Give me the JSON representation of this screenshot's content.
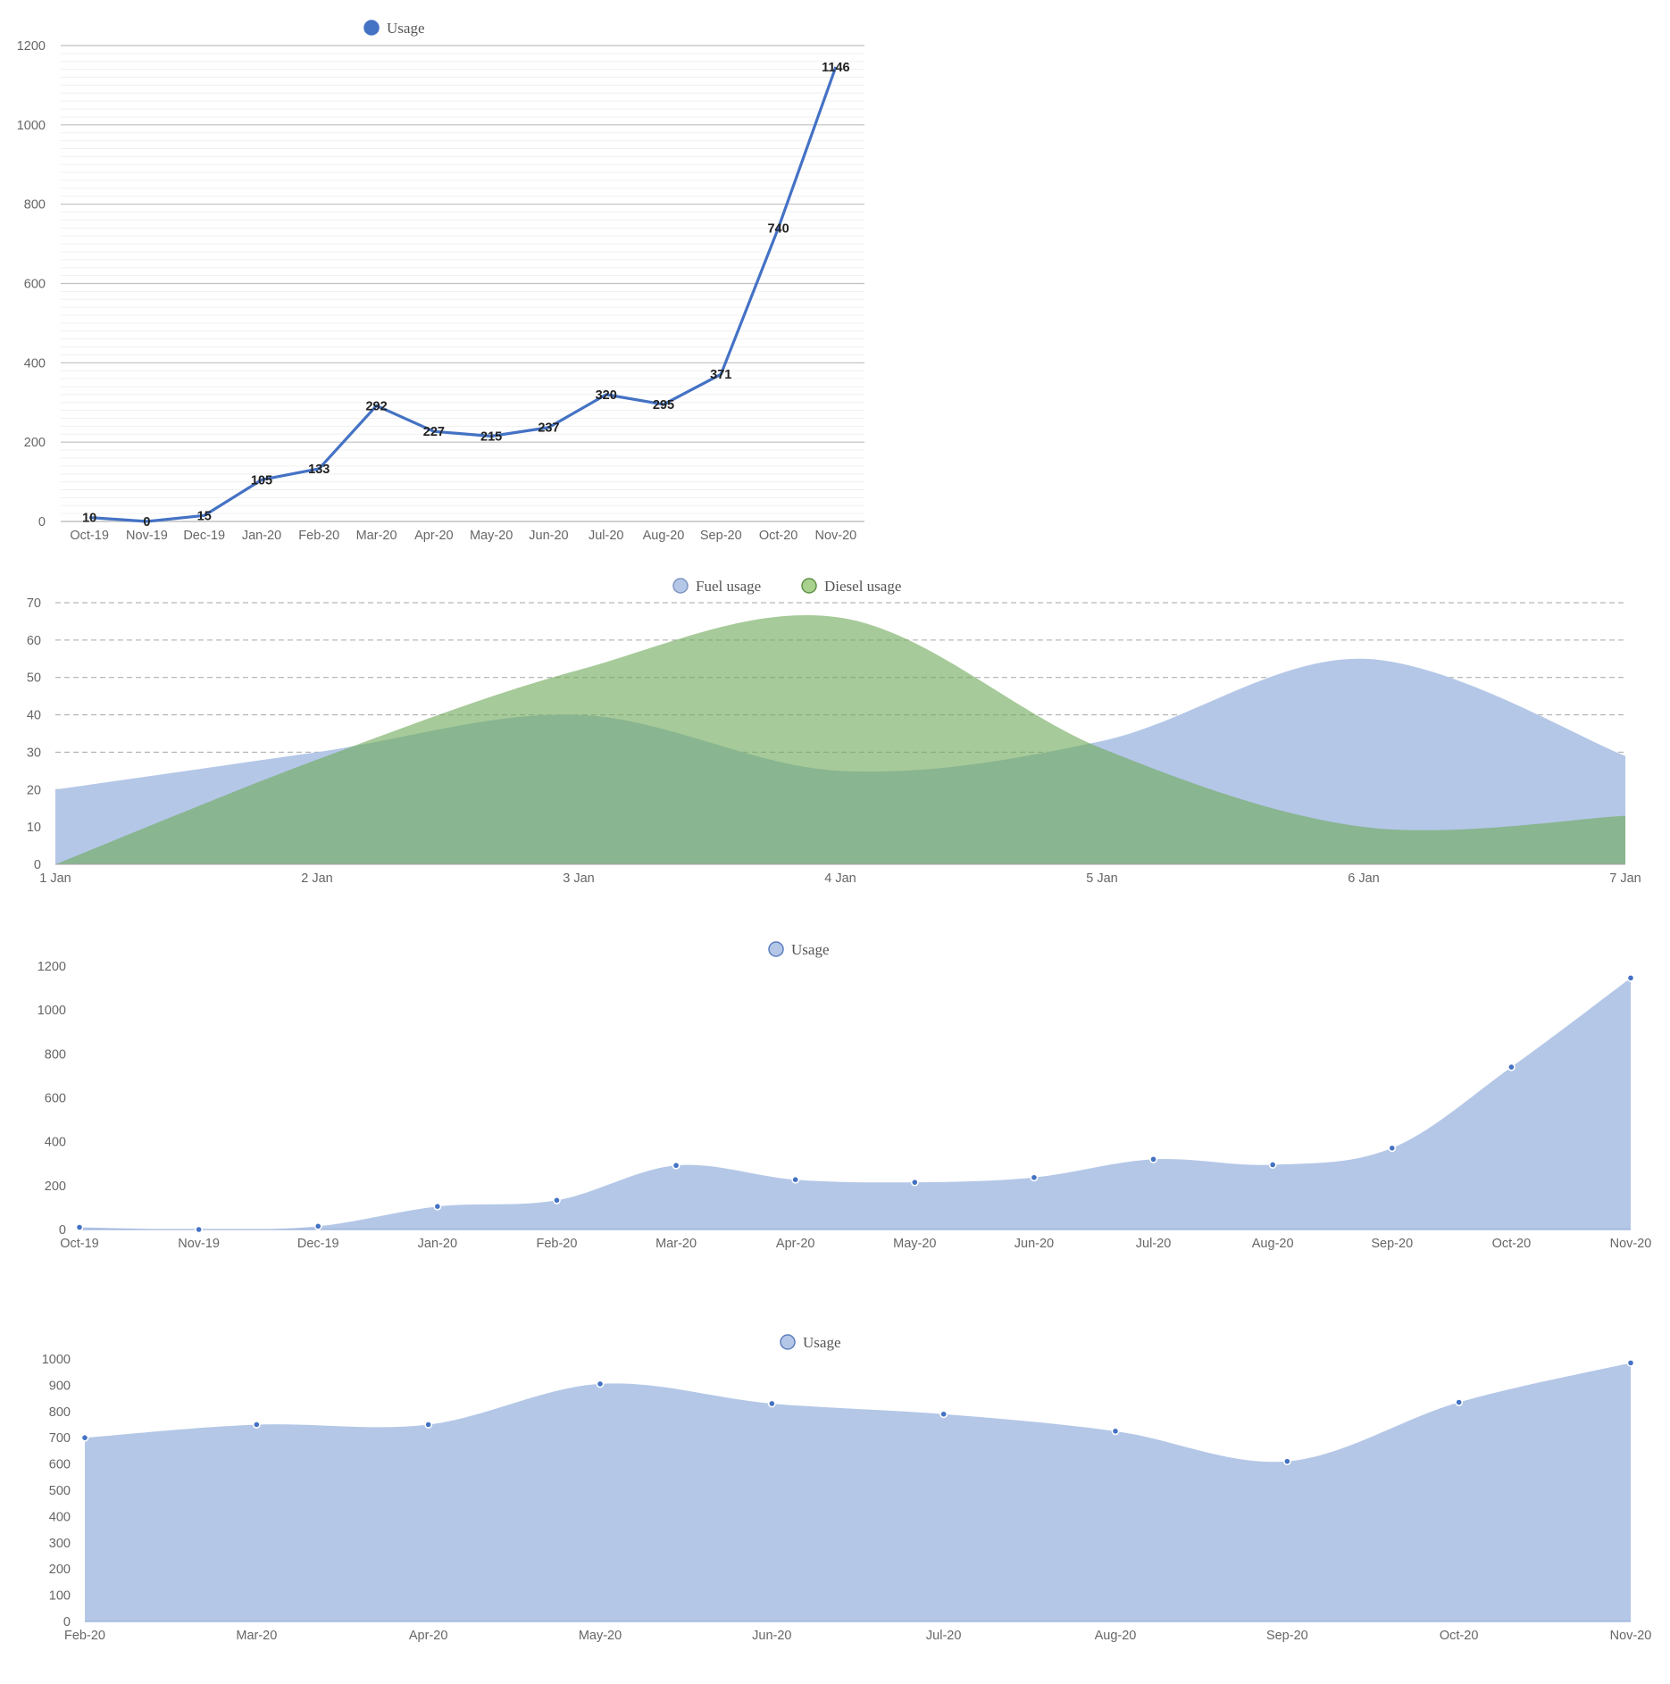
{
  "chart_data": [
    {
      "type": "line",
      "categories": [
        "Oct-19",
        "Nov-19",
        "Dec-19",
        "Jan-20",
        "Feb-20",
        "Mar-20",
        "Apr-20",
        "May-20",
        "Jun-20",
        "Jul-20",
        "Aug-20",
        "Sep-20",
        "Oct-20",
        "Nov-20"
      ],
      "series": [
        {
          "name": "Usage",
          "color": "#4472c4",
          "values": [
            10,
            0,
            15,
            105,
            133,
            292,
            227,
            215,
            237,
            320,
            295,
            371,
            740,
            1146
          ]
        }
      ],
      "ylim": [
        0,
        1200
      ],
      "yticks": [
        0,
        200,
        400,
        600,
        800,
        1000,
        1200
      ],
      "data_labels": true,
      "grid": "major solid horizontal lines with faint minor lines",
      "legend": "top-center",
      "title": "",
      "xlabel": "",
      "ylabel": ""
    },
    {
      "type": "area",
      "categories": [
        "1 Jan",
        "2 Jan",
        "3 Jan",
        "4 Jan",
        "5 Jan",
        "6 Jan",
        "7 Jan"
      ],
      "series": [
        {
          "name": "Fuel usage",
          "color": "#b4c7e7",
          "values": [
            20,
            30,
            40,
            25,
            33,
            55,
            29
          ]
        },
        {
          "name": "Diesel usage",
          "color": "#a9d18e",
          "values": [
            0,
            28,
            52,
            66,
            31,
            10,
            13
          ]
        }
      ],
      "ylim": [
        0,
        70
      ],
      "yticks": [
        0,
        10,
        20,
        30,
        40,
        50,
        60,
        70
      ],
      "grid": "dashed horizontal lines",
      "legend": "top-center",
      "title": "",
      "xlabel": "",
      "ylabel": ""
    },
    {
      "type": "area",
      "categories": [
        "Oct-19",
        "Nov-19",
        "Dec-19",
        "Jan-20",
        "Feb-20",
        "Mar-20",
        "Apr-20",
        "May-20",
        "Jun-20",
        "Jul-20",
        "Aug-20",
        "Sep-20",
        "Oct-20",
        "Nov-20"
      ],
      "series": [
        {
          "name": "Usage",
          "color": "#b4c7e7",
          "values": [
            10,
            0,
            15,
            105,
            133,
            292,
            227,
            215,
            237,
            320,
            295,
            371,
            740,
            1146
          ]
        }
      ],
      "ylim": [
        0,
        1200
      ],
      "yticks": [
        0,
        200,
        400,
        600,
        800,
        1000,
        1200
      ],
      "grid": "off",
      "legend": "top-center",
      "title": "",
      "xlabel": "",
      "ylabel": ""
    },
    {
      "type": "area",
      "categories": [
        "Feb-20",
        "Mar-20",
        "Apr-20",
        "May-20",
        "Jun-20",
        "Jul-20",
        "Aug-20",
        "Sep-20",
        "Oct-20",
        "Nov-20"
      ],
      "series": [
        {
          "name": "Usage",
          "color": "#b4c7e7",
          "values": [
            700,
            750,
            750,
            905,
            830,
            790,
            725,
            610,
            835,
            985
          ]
        }
      ],
      "ylim": [
        0,
        1000
      ],
      "yticks": [
        0,
        100,
        200,
        300,
        400,
        500,
        600,
        700,
        800,
        900,
        1000
      ],
      "grid": "off",
      "legend": "top-center",
      "title": "",
      "xlabel": "",
      "ylabel": ""
    }
  ]
}
